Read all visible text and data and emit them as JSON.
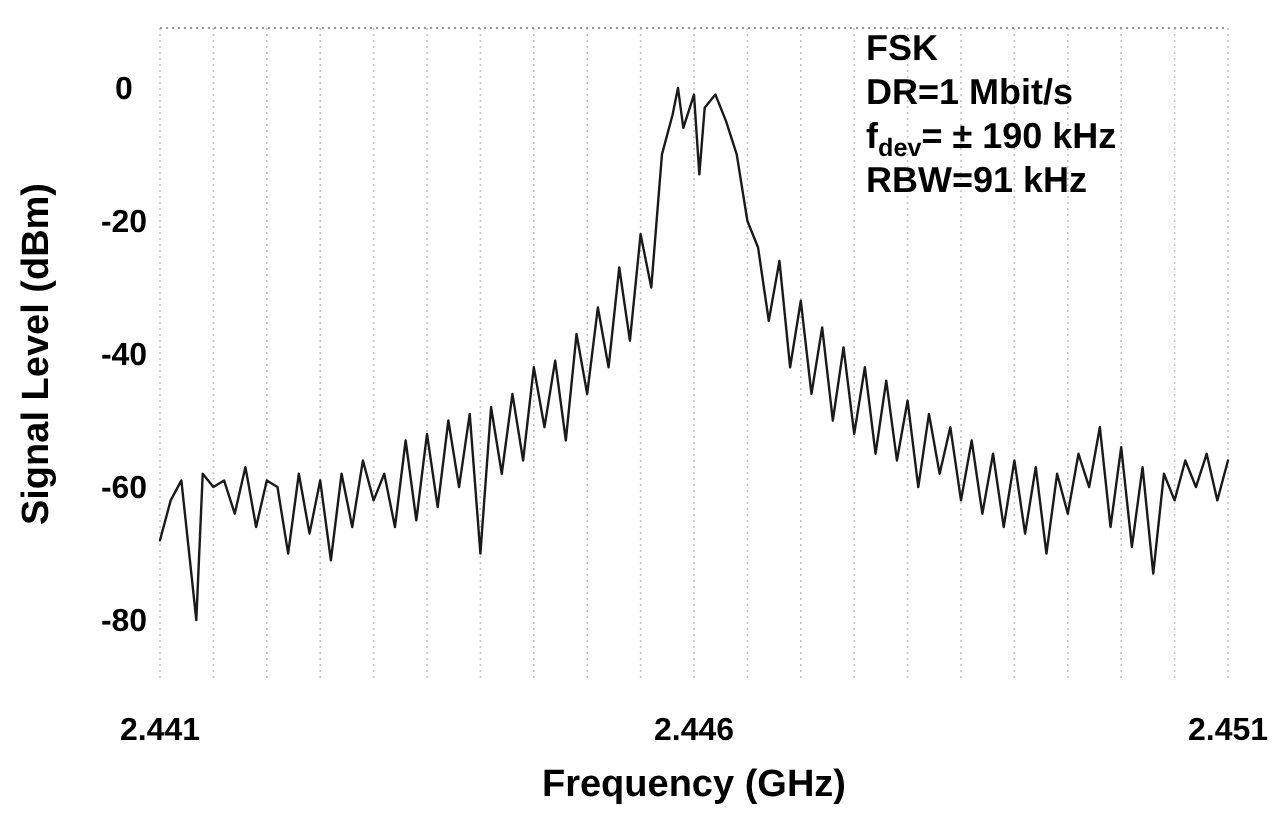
{
  "chart_data": {
    "type": "line",
    "xlabel": "Frequency (GHz)",
    "ylabel": "Signal Level (dBm)",
    "annotations": [
      "FSK",
      "DR=1 Mbit/s",
      "f$_{dev}$= ± 190 kHz",
      "RBW=91 kHz"
    ],
    "xlim": [
      2.441,
      2.451
    ],
    "ylim": [
      -89,
      9
    ],
    "xticks": [
      2.441,
      {
        "value": 2.4415,
        "label": null
      },
      {
        "value": 2.442,
        "label": null
      },
      {
        "value": 2.4425,
        "label": null
      },
      {
        "value": 2.443,
        "label": null
      },
      {
        "value": 2.4435,
        "label": null
      },
      {
        "value": 2.444,
        "label": null
      },
      {
        "value": 2.4445,
        "label": null
      },
      {
        "value": 2.445,
        "label": null
      },
      {
        "value": 2.4455,
        "label": null
      },
      2.446,
      {
        "value": 2.4465,
        "label": null
      },
      {
        "value": 2.447,
        "label": null
      },
      {
        "value": 2.4475,
        "label": null
      },
      {
        "value": 2.448,
        "label": null
      },
      {
        "value": 2.4485,
        "label": null
      },
      {
        "value": 2.449,
        "label": null
      },
      {
        "value": 2.4495,
        "label": null
      },
      {
        "value": 2.45,
        "label": null
      },
      {
        "value": 2.4505,
        "label": null
      },
      2.451
    ],
    "yticks": [
      0,
      -20,
      -40,
      -60,
      -80
    ],
    "grid": "x",
    "marker": "none",
    "line_style": "solid",
    "x": [
      2.441,
      2.4411,
      2.4412,
      2.44134,
      2.4414,
      2.4415,
      2.4416,
      2.4417,
      2.4418,
      2.4419,
      2.442,
      2.4421,
      2.4422,
      2.4423,
      2.4424,
      2.4425,
      2.4426,
      2.4427,
      2.4428,
      2.4429,
      2.443,
      2.4431,
      2.4432,
      2.4433,
      2.4434,
      2.4435,
      2.4436,
      2.4437,
      2.4438,
      2.4439,
      2.444,
      2.4441,
      2.4442,
      2.4443,
      2.4444,
      2.4445,
      2.4446,
      2.4447,
      2.4448,
      2.4449,
      2.445,
      2.4451,
      2.4452,
      2.4453,
      2.4454,
      2.4455,
      2.4456,
      2.4457,
      2.4458,
      2.44585,
      2.4459,
      2.446,
      2.44605,
      2.4461,
      2.4462,
      2.4463,
      2.4464,
      2.4465,
      2.4466,
      2.4467,
      2.4468,
      2.4469,
      2.447,
      2.4471,
      2.4472,
      2.4473,
      2.4474,
      2.4475,
      2.4476,
      2.4477,
      2.4478,
      2.4479,
      2.448,
      2.4481,
      2.4482,
      2.4483,
      2.4484,
      2.4485,
      2.4486,
      2.4487,
      2.4488,
      2.4489,
      2.449,
      2.4491,
      2.4492,
      2.4493,
      2.4494,
      2.4495,
      2.4496,
      2.4497,
      2.4498,
      2.4499,
      2.45,
      2.4501,
      2.4502,
      2.4503,
      2.4504,
      2.4505,
      2.4506,
      2.4507,
      2.4508,
      2.4509,
      2.451
    ],
    "series": [
      {
        "color": "#1a1a1a",
        "values": [
          -68,
          -62,
          -59,
          -80,
          -58,
          -60,
          -59,
          -64,
          -57,
          -66,
          -59,
          -60,
          -70,
          -58,
          -67,
          -59,
          -71,
          -58,
          -66,
          -56,
          -62,
          -58,
          -66,
          -53,
          -65,
          -52,
          -63,
          -50,
          -60,
          -49,
          -70,
          -48,
          -58,
          -46,
          -56,
          -42,
          -51,
          -41,
          -53,
          -37,
          -46,
          -33,
          -42,
          -27,
          -38,
          -22,
          -30,
          -10,
          -4,
          0,
          -6,
          -1,
          -13,
          -3,
          -1,
          -5,
          -10,
          -20,
          -24,
          -35,
          -26,
          -42,
          -32,
          -46,
          -36,
          -50,
          -39,
          -52,
          -42,
          -55,
          -44,
          -56,
          -47,
          -60,
          -49,
          -58,
          -51,
          -62,
          -53,
          -64,
          -55,
          -66,
          -56,
          -67,
          -57,
          -70,
          -58,
          -64,
          -55,
          -60,
          -51,
          -66,
          -54,
          -69,
          -57,
          -73,
          -58,
          -62,
          -56,
          -60,
          -55,
          -62,
          -56
        ]
      }
    ]
  }
}
